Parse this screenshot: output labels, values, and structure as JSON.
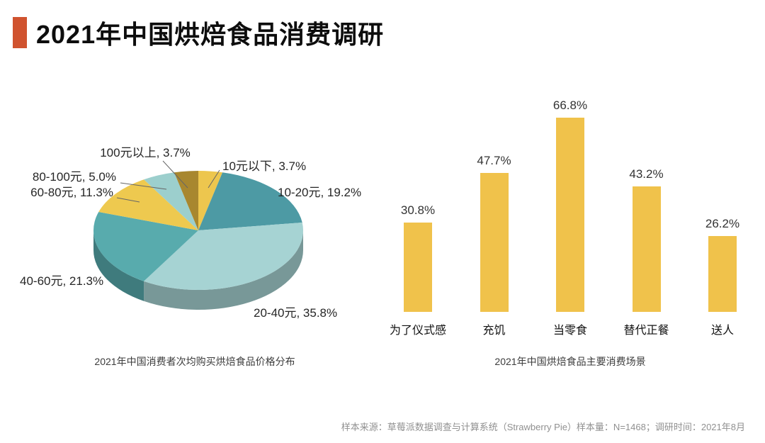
{
  "title": "2021年中国烘焙食品消费调研",
  "accent_color": "#d0532f",
  "footer": {
    "source": "样本来源：草莓派数据调查与计算系统（Strawberry Pie）样本量：N=1468；调研时间：2021年8月"
  },
  "chart_data": [
    {
      "type": "pie",
      "title": "2021年中国消费者次均购买烘焙食品价格分布",
      "style": "3d-pie",
      "segments": [
        {
          "label": "10元以下",
          "value": 3.7,
          "color": "#edc64e"
        },
        {
          "label": "10-20元",
          "value": 19.2,
          "color": "#4d9aa4"
        },
        {
          "label": "20-40元",
          "value": 35.8,
          "color": "#a6d3d3"
        },
        {
          "label": "40-60元",
          "value": 21.3,
          "color": "#58abad"
        },
        {
          "label": "60-80元",
          "value": 11.3,
          "color": "#eec94f"
        },
        {
          "label": "80-100元",
          "value": 5.0,
          "color": "#9ccfcd"
        },
        {
          "label": "100元以上",
          "value": 3.7,
          "color": "#a8872f"
        }
      ]
    },
    {
      "type": "bar",
      "title": "2021年中国烘焙食品主要消费场景",
      "categories": [
        "为了仪式感",
        "充饥",
        "当零食",
        "替代正餐",
        "送人"
      ],
      "values": [
        30.8,
        47.7,
        66.8,
        43.2,
        26.2
      ],
      "value_suffix": "%",
      "bar_color": "#f0c24b",
      "ylim": [
        0,
        70
      ],
      "grid": false,
      "legend": "none"
    }
  ]
}
